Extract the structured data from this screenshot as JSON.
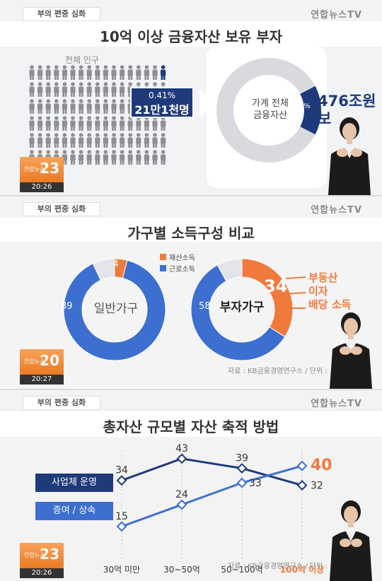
{
  "broadcast": {
    "topic": "부의 편중 심화",
    "watermark": "연합뉴스TV",
    "logo_text": "연합뉴스",
    "panel1_channel": "23",
    "panel1_time": "20:26",
    "panel2_channel": "20",
    "panel2_time": "20:27",
    "panel3_channel": "23",
    "panel3_time": "20:26"
  },
  "colors": {
    "navy": "#1e3a7b",
    "blue": "#3c6fd0",
    "orange": "#f07a3c",
    "gray": "#c9cacc",
    "light": "#e3e5ea"
  },
  "chart_data": [
    {
      "type": "pie",
      "title": "10억 이상 금융자산 보유 부자",
      "population_label": "전체 인구",
      "people_percent": "0.41%",
      "people_count": "21만1천명",
      "people_share": 0.0041,
      "donut_label_1": "가계 전체",
      "donut_label_2": "금융자산",
      "slice_label": "15.3%",
      "slice_value": 15.3,
      "amount_label_1": "476조원",
      "amount_label_2": "보"
    },
    {
      "type": "pie",
      "title": "가구별 소득구성 비교",
      "legend": [
        "재산소득",
        "근로소득"
      ],
      "source": "자료 : KB금융경영연구소 / 단위 :",
      "charts": [
        {
          "name": "일반가구",
          "property": 4,
          "labor": 89,
          "other": 7
        },
        {
          "name": "부자가구",
          "property": 34,
          "labor": 58,
          "other": 8
        }
      ],
      "property_items": [
        "부동산",
        "이자",
        "배당 소득"
      ]
    },
    {
      "type": "line",
      "title": "총자산 규모별 자산 축적 방법",
      "categories": [
        "30억 미만",
        "30~50억",
        "50~100억",
        "100억 이상"
      ],
      "series": [
        {
          "name": "사업체 운영",
          "values": [
            34,
            43,
            39,
            32
          ]
        },
        {
          "name": "증여 / 상속",
          "values": [
            15,
            24,
            33,
            40
          ]
        }
      ],
      "source": "자료 : KB금융경영연구소 / 단위 :"
    }
  ]
}
